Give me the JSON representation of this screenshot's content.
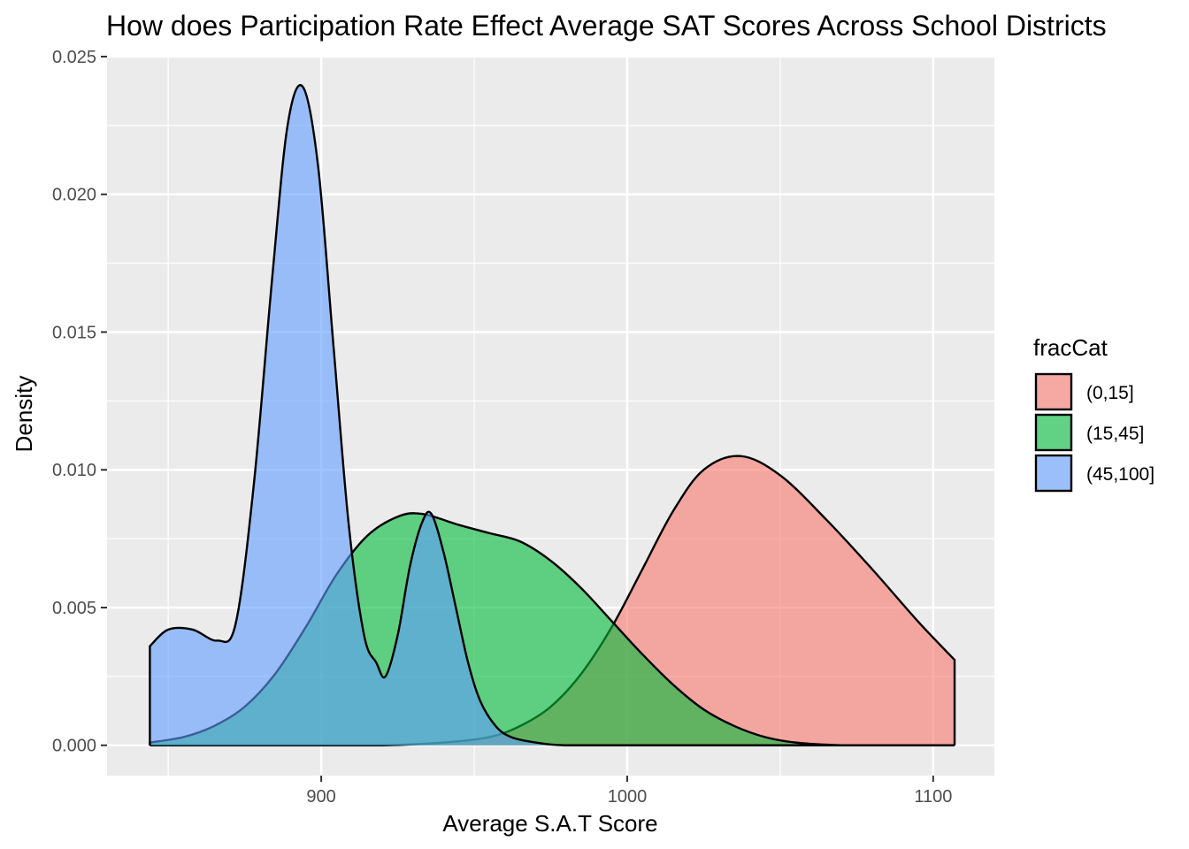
{
  "chart_data": {
    "type": "area",
    "title": "How does Participation Rate Effect Average SAT Scores Across School Districts",
    "xlabel": "Average S.A.T Score",
    "ylabel": "Density",
    "xlim": [
      830,
      1120
    ],
    "ylim": [
      -0.0011,
      0.025
    ],
    "x_ticks": [
      900,
      1000,
      1100
    ],
    "x_tick_labels": [
      "900",
      "1000",
      "1100"
    ],
    "x_minor_ticks": [
      850,
      950,
      1050
    ],
    "y_ticks": [
      0.0,
      0.005,
      0.01,
      0.015,
      0.02,
      0.025
    ],
    "y_tick_labels": [
      "0.000",
      "0.005",
      "0.010",
      "0.015",
      "0.020",
      "0.025"
    ],
    "y_minor_ticks": [
      0.0025,
      0.0075,
      0.0125,
      0.0175,
      0.0225
    ],
    "grid": true,
    "legend": {
      "title": "fracCat",
      "position": "right"
    },
    "series": [
      {
        "name": "(0,15]",
        "color": "#F8766D",
        "x": [
          844,
          860,
          880,
          900,
          920,
          940,
          955,
          965,
          975,
          985,
          995,
          1005,
          1015,
          1025,
          1037,
          1050,
          1065,
          1080,
          1095,
          1107
        ],
        "y": [
          0.0,
          0.0,
          0.0,
          0.0,
          0.0,
          0.0001,
          0.0003,
          0.0007,
          0.0014,
          0.0026,
          0.0043,
          0.0064,
          0.0085,
          0.01,
          0.0105,
          0.0098,
          0.0082,
          0.0064,
          0.0045,
          0.0031
        ]
      },
      {
        "name": "(15,45]",
        "color": "#00BA38",
        "x": [
          844,
          855,
          865,
          875,
          885,
          895,
          905,
          915,
          925,
          933,
          945,
          955,
          965,
          975,
          985,
          995,
          1005,
          1015,
          1025,
          1035,
          1045,
          1055,
          1070,
          1085,
          1107
        ],
        "y": [
          0.0001,
          0.0003,
          0.0007,
          0.0014,
          0.0026,
          0.0043,
          0.0062,
          0.0076,
          0.0083,
          0.0084,
          0.008,
          0.0077,
          0.0074,
          0.0067,
          0.0057,
          0.0045,
          0.0033,
          0.0022,
          0.0013,
          0.0007,
          0.0003,
          0.0001,
          0.0,
          0.0,
          0.0
        ]
      },
      {
        "name": "(45,100]",
        "color": "#619CFF",
        "x": [
          844,
          850,
          858,
          866,
          872,
          878,
          884,
          889,
          894,
          899,
          904,
          909,
          914,
          918,
          921,
          925,
          929,
          933,
          936,
          940,
          944,
          948,
          952,
          957,
          962,
          970,
          980,
          1000,
          1107
        ],
        "y": [
          0.0036,
          0.0042,
          0.0042,
          0.0038,
          0.0044,
          0.0095,
          0.017,
          0.0225,
          0.0239,
          0.021,
          0.0145,
          0.008,
          0.004,
          0.003,
          0.0025,
          0.004,
          0.0065,
          0.0081,
          0.0084,
          0.007,
          0.005,
          0.003,
          0.0016,
          0.0007,
          0.0003,
          0.0001,
          0.0,
          0.0,
          0.0
        ]
      }
    ]
  }
}
